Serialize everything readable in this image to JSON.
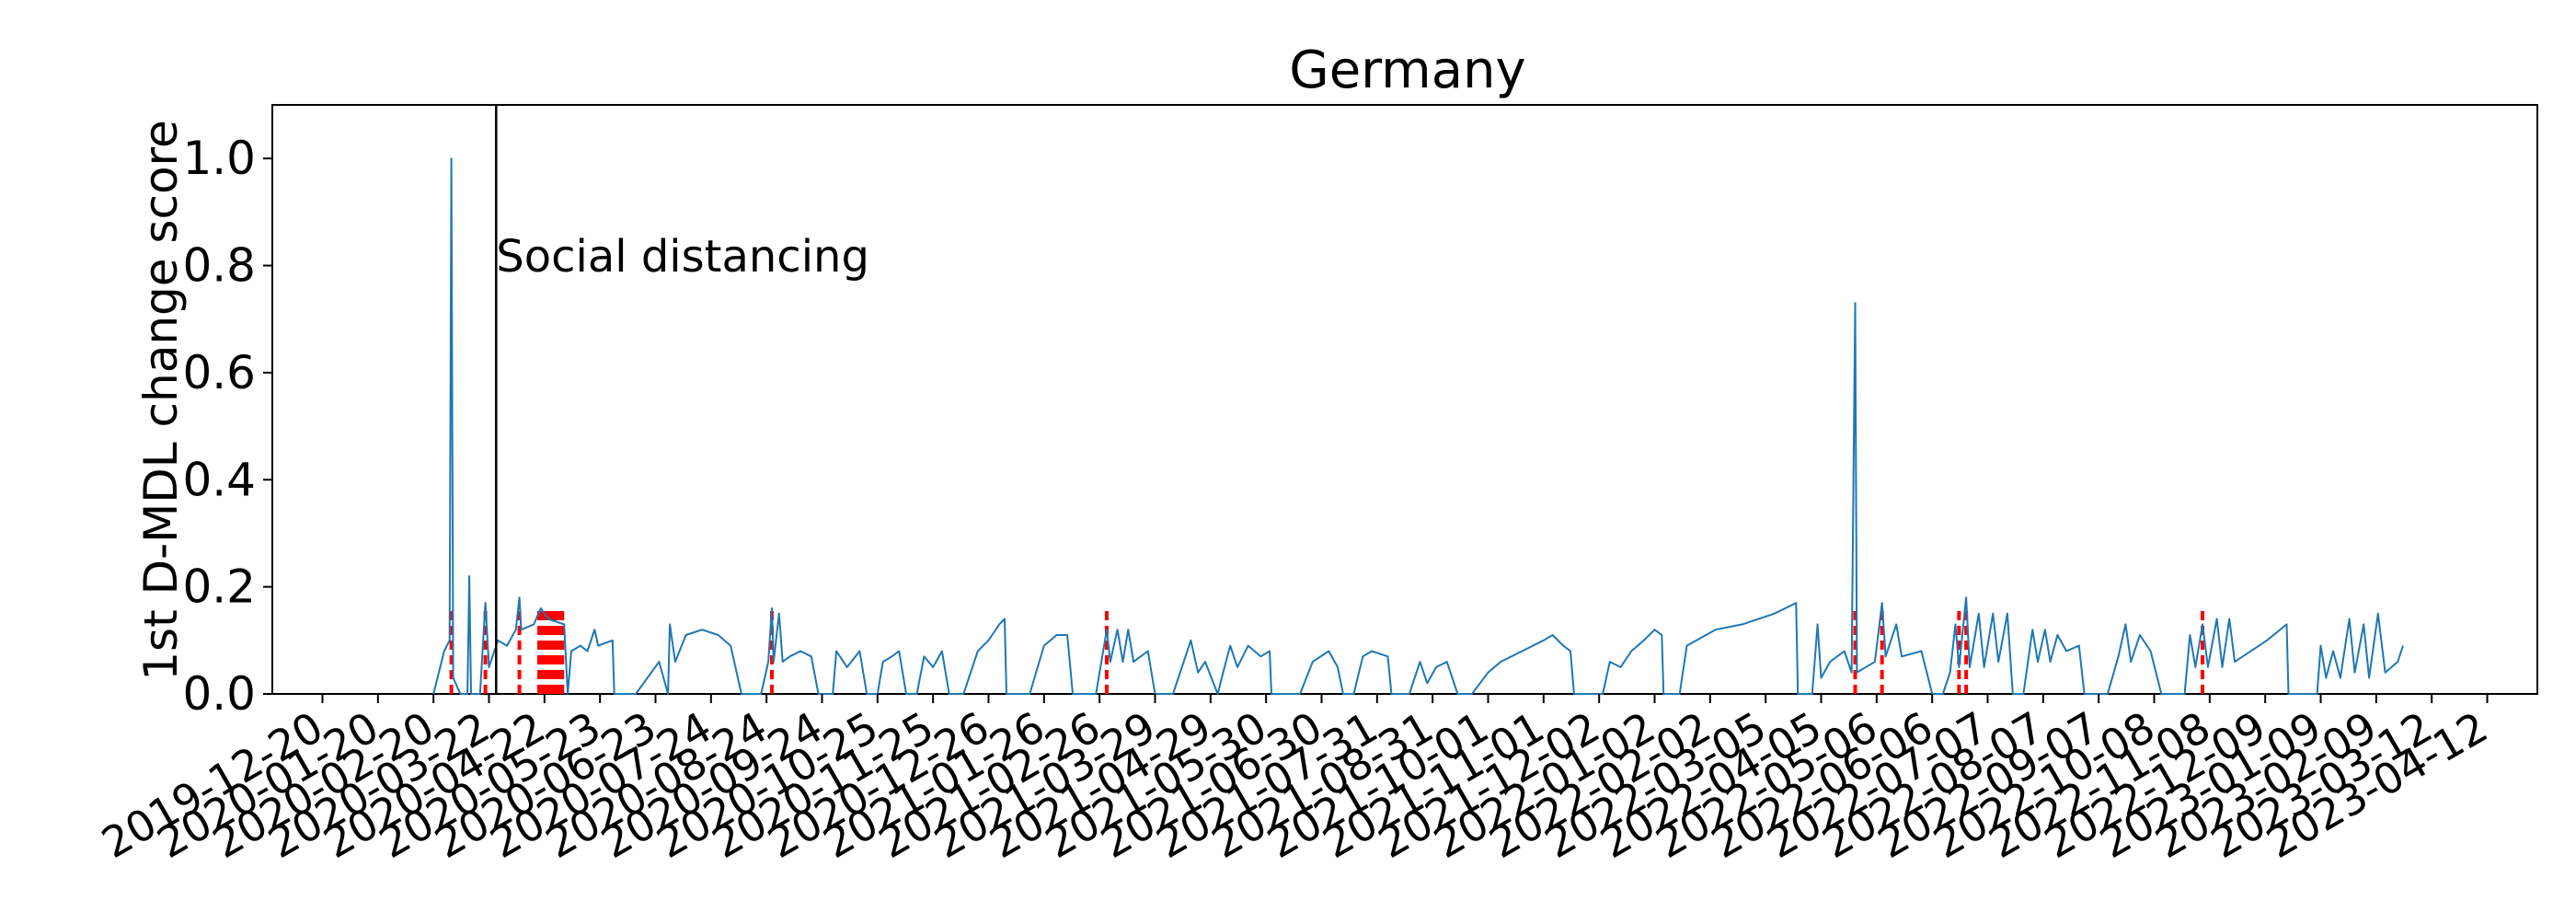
{
  "chart_data": {
    "type": "line",
    "title": "Germany",
    "xlabel": "",
    "ylabel": "1st D-MDL change score",
    "x_type": "date",
    "xlim": [
      "2019-11-22",
      "2023-05-10"
    ],
    "ylim": [
      0,
      1.1
    ],
    "yticks": [
      0.0,
      0.2,
      0.4,
      0.6,
      0.8,
      1.0
    ],
    "ytick_labels": [
      "0.0",
      "0.2",
      "0.4",
      "0.6",
      "0.8",
      "1.0"
    ],
    "xticks": [
      "2019-12-20",
      "2020-01-20",
      "2020-02-20",
      "2020-03-22",
      "2020-04-22",
      "2020-05-23",
      "2020-06-23",
      "2020-07-24",
      "2020-08-24",
      "2020-09-24",
      "2020-10-25",
      "2020-11-25",
      "2020-12-26",
      "2021-01-26",
      "2021-02-26",
      "2021-03-29",
      "2021-04-29",
      "2021-05-30",
      "2021-06-30",
      "2021-07-31",
      "2021-08-31",
      "2021-10-01",
      "2021-11-01",
      "2021-12-02",
      "2022-01-02",
      "2022-02-02",
      "2022-03-05",
      "2022-04-05",
      "2022-05-06",
      "2022-06-06",
      "2022-07-07",
      "2022-08-07",
      "2022-09-07",
      "2022-10-08",
      "2022-11-08",
      "2022-12-09",
      "2023-01-09",
      "2023-02-09",
      "2023-03-12",
      "2023-04-12"
    ],
    "grid": false,
    "legend": "none",
    "series": [
      {
        "name": "",
        "color": "#1f77b4",
        "points": [
          [
            "2020-02-20",
            0.0
          ],
          [
            "2020-02-26",
            0.08
          ],
          [
            "2020-02-29",
            0.1
          ],
          [
            "2020-03-01",
            1.0
          ],
          [
            "2020-03-02",
            0.03
          ],
          [
            "2020-03-06",
            0.0
          ],
          [
            "2020-03-10",
            0.0
          ],
          [
            "2020-03-11",
            0.22
          ],
          [
            "2020-03-12",
            0.0
          ],
          [
            "2020-03-17",
            0.0
          ],
          [
            "2020-03-20",
            0.17
          ],
          [
            "2020-03-22",
            0.05
          ],
          [
            "2020-03-27",
            0.1
          ],
          [
            "2020-04-01",
            0.09
          ],
          [
            "2020-04-06",
            0.12
          ],
          [
            "2020-04-08",
            0.18
          ],
          [
            "2020-04-09",
            0.12
          ],
          [
            "2020-04-16",
            0.13
          ],
          [
            "2020-04-20",
            0.16
          ],
          [
            "2020-04-24",
            0.14
          ],
          [
            "2020-05-03",
            0.13
          ],
          [
            "2020-05-05",
            0.0
          ],
          [
            "2020-05-07",
            0.08
          ],
          [
            "2020-05-12",
            0.09
          ],
          [
            "2020-05-16",
            0.08
          ],
          [
            "2020-05-20",
            0.12
          ],
          [
            "2020-05-22",
            0.09
          ],
          [
            "2020-05-30",
            0.1
          ],
          [
            "2020-05-31",
            0.0
          ],
          [
            "2020-06-12",
            0.0
          ],
          [
            "2020-06-25",
            0.06
          ],
          [
            "2020-06-30",
            0.0
          ],
          [
            "2020-07-01",
            0.13
          ],
          [
            "2020-07-04",
            0.06
          ],
          [
            "2020-07-10",
            0.11
          ],
          [
            "2020-07-19",
            0.12
          ],
          [
            "2020-07-28",
            0.11
          ],
          [
            "2020-08-04",
            0.09
          ],
          [
            "2020-08-10",
            0.0
          ],
          [
            "2020-08-21",
            0.0
          ],
          [
            "2020-08-25",
            0.06
          ],
          [
            "2020-08-27",
            0.16
          ],
          [
            "2020-08-28",
            0.06
          ],
          [
            "2020-08-31",
            0.15
          ],
          [
            "2020-09-02",
            0.06
          ],
          [
            "2020-09-06",
            0.07
          ],
          [
            "2020-09-12",
            0.08
          ],
          [
            "2020-09-18",
            0.07
          ],
          [
            "2020-09-22",
            0.0
          ],
          [
            "2020-09-30",
            0.0
          ],
          [
            "2020-10-02",
            0.08
          ],
          [
            "2020-10-08",
            0.05
          ],
          [
            "2020-10-15",
            0.08
          ],
          [
            "2020-10-19",
            0.0
          ],
          [
            "2020-10-25",
            0.0
          ],
          [
            "2020-10-28",
            0.06
          ],
          [
            "2020-11-02",
            0.07
          ],
          [
            "2020-11-06",
            0.08
          ],
          [
            "2020-11-10",
            0.0
          ],
          [
            "2020-11-16",
            0.0
          ],
          [
            "2020-11-20",
            0.07
          ],
          [
            "2020-11-25",
            0.05
          ],
          [
            "2020-11-30",
            0.08
          ],
          [
            "2020-12-04",
            0.0
          ],
          [
            "2020-12-12",
            0.0
          ],
          [
            "2020-12-20",
            0.08
          ],
          [
            "2020-12-26",
            0.1
          ],
          [
            "2021-01-01",
            0.13
          ],
          [
            "2021-01-04",
            0.14
          ],
          [
            "2021-01-05",
            0.0
          ],
          [
            "2021-01-18",
            0.0
          ],
          [
            "2021-01-26",
            0.09
          ],
          [
            "2021-02-02",
            0.11
          ],
          [
            "2021-02-08",
            0.11
          ],
          [
            "2021-02-11",
            0.0
          ],
          [
            "2021-02-24",
            0.0
          ],
          [
            "2021-03-02",
            0.12
          ],
          [
            "2021-03-04",
            0.06
          ],
          [
            "2021-03-08",
            0.12
          ],
          [
            "2021-03-11",
            0.06
          ],
          [
            "2021-03-14",
            0.12
          ],
          [
            "2021-03-17",
            0.06
          ],
          [
            "2021-03-25",
            0.08
          ],
          [
            "2021-03-29",
            0.0
          ],
          [
            "2021-04-08",
            0.0
          ],
          [
            "2021-04-18",
            0.1
          ],
          [
            "2021-04-22",
            0.04
          ],
          [
            "2021-04-26",
            0.06
          ],
          [
            "2021-05-03",
            0.0
          ],
          [
            "2021-05-06",
            0.04
          ],
          [
            "2021-05-10",
            0.09
          ],
          [
            "2021-05-14",
            0.05
          ],
          [
            "2021-05-20",
            0.09
          ],
          [
            "2021-05-27",
            0.07
          ],
          [
            "2021-06-01",
            0.08
          ],
          [
            "2021-06-02",
            0.0
          ],
          [
            "2021-06-18",
            0.0
          ],
          [
            "2021-06-25",
            0.06
          ],
          [
            "2021-07-04",
            0.08
          ],
          [
            "2021-07-09",
            0.05
          ],
          [
            "2021-07-12",
            0.0
          ],
          [
            "2021-07-18",
            0.0
          ],
          [
            "2021-07-23",
            0.07
          ],
          [
            "2021-07-28",
            0.08
          ],
          [
            "2021-08-06",
            0.07
          ],
          [
            "2021-08-08",
            0.0
          ],
          [
            "2021-08-18",
            0.0
          ],
          [
            "2021-08-24",
            0.06
          ],
          [
            "2021-08-28",
            0.02
          ],
          [
            "2021-09-02",
            0.05
          ],
          [
            "2021-09-08",
            0.06
          ],
          [
            "2021-09-14",
            0.0
          ],
          [
            "2021-09-22",
            0.0
          ],
          [
            "2021-10-01",
            0.04
          ],
          [
            "2021-10-08",
            0.06
          ],
          [
            "2021-10-20",
            0.08
          ],
          [
            "2021-11-01",
            0.1
          ],
          [
            "2021-11-06",
            0.11
          ],
          [
            "2021-11-12",
            0.09
          ],
          [
            "2021-11-16",
            0.08
          ],
          [
            "2021-11-18",
            0.0
          ],
          [
            "2021-12-04",
            0.0
          ],
          [
            "2021-12-08",
            0.06
          ],
          [
            "2021-12-14",
            0.05
          ],
          [
            "2021-12-20",
            0.08
          ],
          [
            "2021-12-27",
            0.1
          ],
          [
            "2022-01-02",
            0.12
          ],
          [
            "2022-01-06",
            0.11
          ],
          [
            "2022-01-07",
            0.0
          ],
          [
            "2022-01-16",
            0.0
          ],
          [
            "2022-01-20",
            0.09
          ],
          [
            "2022-02-05",
            0.12
          ],
          [
            "2022-02-20",
            0.13
          ],
          [
            "2022-03-10",
            0.15
          ],
          [
            "2022-03-22",
            0.17
          ],
          [
            "2022-03-23",
            0.0
          ],
          [
            "2022-03-31",
            0.0
          ],
          [
            "2022-04-03",
            0.13
          ],
          [
            "2022-04-05",
            0.03
          ],
          [
            "2022-04-10",
            0.06
          ],
          [
            "2022-04-18",
            0.08
          ],
          [
            "2022-04-22",
            0.04
          ],
          [
            "2022-04-24",
            0.73
          ],
          [
            "2022-04-25",
            0.04
          ],
          [
            "2022-05-05",
            0.06
          ],
          [
            "2022-05-09",
            0.17
          ],
          [
            "2022-05-11",
            0.07
          ],
          [
            "2022-05-17",
            0.13
          ],
          [
            "2022-05-20",
            0.07
          ],
          [
            "2022-05-31",
            0.08
          ],
          [
            "2022-06-06",
            0.0
          ],
          [
            "2022-06-12",
            0.0
          ],
          [
            "2022-06-16",
            0.04
          ],
          [
            "2022-06-19",
            0.13
          ],
          [
            "2022-06-21",
            0.05
          ],
          [
            "2022-06-25",
            0.18
          ],
          [
            "2022-06-27",
            0.05
          ],
          [
            "2022-07-02",
            0.15
          ],
          [
            "2022-07-05",
            0.05
          ],
          [
            "2022-07-10",
            0.15
          ],
          [
            "2022-07-13",
            0.06
          ],
          [
            "2022-07-18",
            0.15
          ],
          [
            "2022-07-21",
            0.0
          ],
          [
            "2022-07-27",
            0.0
          ],
          [
            "2022-08-01",
            0.12
          ],
          [
            "2022-08-04",
            0.06
          ],
          [
            "2022-08-08",
            0.12
          ],
          [
            "2022-08-11",
            0.06
          ],
          [
            "2022-08-15",
            0.11
          ],
          [
            "2022-08-20",
            0.08
          ],
          [
            "2022-08-27",
            0.09
          ],
          [
            "2022-08-30",
            0.0
          ],
          [
            "2022-09-12",
            0.0
          ],
          [
            "2022-09-18",
            0.07
          ],
          [
            "2022-09-22",
            0.13
          ],
          [
            "2022-09-25",
            0.06
          ],
          [
            "2022-09-30",
            0.11
          ],
          [
            "2022-10-06",
            0.08
          ],
          [
            "2022-10-12",
            0.0
          ],
          [
            "2022-10-25",
            0.0
          ],
          [
            "2022-10-28",
            0.11
          ],
          [
            "2022-10-31",
            0.05
          ],
          [
            "2022-11-04",
            0.13
          ],
          [
            "2022-11-07",
            0.05
          ],
          [
            "2022-11-12",
            0.14
          ],
          [
            "2022-11-15",
            0.05
          ],
          [
            "2022-11-19",
            0.14
          ],
          [
            "2022-11-22",
            0.06
          ],
          [
            "2022-12-10",
            0.1
          ],
          [
            "2022-12-21",
            0.13
          ],
          [
            "2022-12-22",
            0.0
          ],
          [
            "2023-01-07",
            0.0
          ],
          [
            "2023-01-09",
            0.09
          ],
          [
            "2023-01-12",
            0.03
          ],
          [
            "2023-01-16",
            0.08
          ],
          [
            "2023-01-20",
            0.03
          ],
          [
            "2023-01-25",
            0.14
          ],
          [
            "2023-01-28",
            0.04
          ],
          [
            "2023-02-02",
            0.13
          ],
          [
            "2023-02-05",
            0.03
          ],
          [
            "2023-02-10",
            0.15
          ],
          [
            "2023-02-14",
            0.04
          ],
          [
            "2023-02-21",
            0.06
          ],
          [
            "2023-02-24",
            0.09
          ]
        ]
      }
    ],
    "change_points": [
      "2020-03-01",
      "2020-03-20",
      "2020-04-08",
      "2020-04-19",
      "2020-04-20",
      "2020-04-21",
      "2020-04-22",
      "2020-04-23",
      "2020-04-24",
      "2020-04-25",
      "2020-04-26",
      "2020-04-27",
      "2020-04-28",
      "2020-04-29",
      "2020-04-30",
      "2020-05-01",
      "2020-05-02",
      "2020-08-27",
      "2021-03-02",
      "2022-04-24",
      "2022-05-09",
      "2022-06-21",
      "2022-06-25",
      "2022-11-04"
    ],
    "change_point_color": "#ff0000",
    "annotations": [
      {
        "text": "Social distancing",
        "date": "2020-03-26",
        "y": 0.82
      }
    ]
  }
}
